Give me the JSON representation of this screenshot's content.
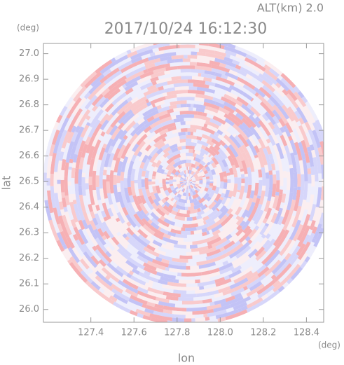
{
  "chart_data": {
    "type": "radar-ppi",
    "title": "2017/10/24 16:12:30",
    "subtitle": "ALT(km) 2.0",
    "x_label": "lon",
    "y_label": "lat",
    "x_unit": "(deg)",
    "y_unit": "(deg)",
    "xlim": [
      127.18,
      128.48
    ],
    "ylim": [
      25.95,
      27.04
    ],
    "xticks": [
      127.4,
      127.6,
      127.8,
      {
        "value": 128,
        "label": "128.0"
      },
      128.2,
      128.4
    ],
    "yticks": [
      {
        "value": 26,
        "label": "26.0"
      },
      26.1,
      26.2,
      26.3,
      26.4,
      26.5,
      26.6,
      26.7,
      26.8,
      26.9,
      {
        "value": 27,
        "label": "27.0"
      }
    ]
  }
}
